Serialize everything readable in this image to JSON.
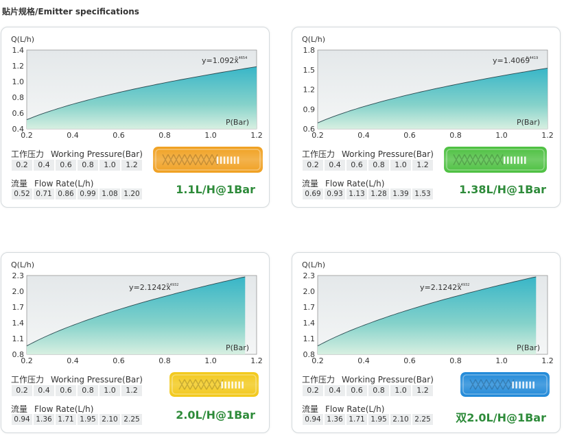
{
  "page_title": "贴片规格/Emitter specifications",
  "cards": [
    {
      "y_label": "Q(L/h)",
      "x_label": "P(Bar)",
      "equation_base": "y=1.092x",
      "equation_exp": "0.4654",
      "pressure_label_cn": "工作压力",
      "pressure_label_en": "Working Pressure(Bar)",
      "pressures": [
        "0.2",
        "0.4",
        "0.6",
        "0.8",
        "1.0",
        "1.2"
      ],
      "flow_label_cn": "流量",
      "flow_label_en": "Flow Rate(L/h)",
      "flows": [
        "0.52",
        "0.71",
        "0.86",
        "0.99",
        "1.08",
        "1.20"
      ],
      "rating": "1.1L/H@1Bar",
      "emitter_color": "#f0a020"
    },
    {
      "y_label": "Q(L/h)",
      "x_label": "P(Bar)",
      "equation_base": "y=1.4069",
      "equation_exp": "0.4419",
      "pressure_label_cn": "工作压力",
      "pressure_label_en": "Working Pressure(Bar)",
      "pressures": [
        "0.2",
        "0.4",
        "0.6",
        "0.8",
        "1.0",
        "1.2"
      ],
      "flow_label_cn": "流量",
      "flow_label_en": "Flow Rate(L/h)",
      "flows": [
        "0.69",
        "0.93",
        "1.13",
        "1.28",
        "1.39",
        "1.53"
      ],
      "rating": "1.38L/H@1Bar",
      "emitter_color": "#4cc040"
    },
    {
      "y_label": "Q(L/h)",
      "x_label": "P(Bar)",
      "equation_base": "y=2.1242x",
      "equation_exp": "0.4932",
      "pressure_label_cn": "工作压力",
      "pressure_label_en": "Working Pressure(Bar)",
      "pressures": [
        "0.2",
        "0.4",
        "0.6",
        "0.8",
        "1.0",
        "1.2"
      ],
      "flow_label_cn": "流量",
      "flow_label_en": "Flow Rate(L/h)",
      "flows": [
        "0.94",
        "1.36",
        "1.71",
        "1.95",
        "2.10",
        "2.25"
      ],
      "rating": "2.0L/H@1Bar",
      "emitter_color": "#f2c818"
    },
    {
      "y_label": "Q(L/h)",
      "x_label": "P(Bar)",
      "equation_base": "y=2.1242x",
      "equation_exp": "0.4932",
      "pressure_label_cn": "工作压力",
      "pressure_label_en": "Working Pressure(Bar)",
      "pressures": [
        "0.2",
        "0.4",
        "0.6",
        "0.8",
        "1.0",
        "1.2"
      ],
      "flow_label_cn": "流量",
      "flow_label_en": "Flow Rate(L/h)",
      "flows": [
        "0.94",
        "1.36",
        "1.71",
        "1.95",
        "2.10",
        "2.25"
      ],
      "rating": "双2.0L/H@1Bar",
      "emitter_color": "#1e88d8"
    }
  ],
  "chart_data": [
    {
      "type": "area",
      "title": "",
      "xlabel": "P(Bar)",
      "ylabel": "Q(L/h)",
      "xlim": [
        0.2,
        1.2
      ],
      "ylim": [
        0.4,
        1.4
      ],
      "x_ticks": [
        "0.2",
        "0.4",
        "0.6",
        "0.8",
        "1.0",
        "1.2"
      ],
      "y_ticks": [
        "0.4",
        "0.6",
        "0.8",
        "1.0",
        "1.2",
        "1.4"
      ],
      "x_end": 1.2,
      "coef": 1.092,
      "exponent": 0.4654
    },
    {
      "type": "area",
      "title": "",
      "xlabel": "P(Bar)",
      "ylabel": "Q(L/h)",
      "xlim": [
        0.2,
        1.2
      ],
      "ylim": [
        0.6,
        1.8
      ],
      "x_ticks": [
        "0.2",
        "0.4",
        "0.6",
        "0.8",
        "1.0",
        "1.2"
      ],
      "y_ticks": [
        "0.6",
        "0.9",
        "1.2",
        "1.5",
        "1.8"
      ],
      "x_end": 1.2,
      "coef": 1.4069,
      "exponent": 0.4419
    },
    {
      "type": "area",
      "title": "",
      "xlabel": "P(Bar)",
      "ylabel": "Q(L/h)",
      "xlim": [
        0.2,
        1.2
      ],
      "ylim": [
        0.8,
        2.3
      ],
      "x_ticks": [
        "0.2",
        "0.4",
        "0.6",
        "0.8",
        "1.0",
        "1.2"
      ],
      "y_ticks": [
        "0.8",
        "1.1",
        "1.4",
        "1.7",
        "2.0",
        "2.3"
      ],
      "x_end": 1.15,
      "coef": 2.1242,
      "exponent": 0.4932
    },
    {
      "type": "area",
      "title": "",
      "xlabel": "P(Bar)",
      "ylabel": "Q(L/h)",
      "xlim": [
        0.2,
        1.2
      ],
      "ylim": [
        0.8,
        2.3
      ],
      "x_ticks": [
        "0.2",
        "0.4",
        "0.6",
        "0.8",
        "1.0",
        "1.2"
      ],
      "y_ticks": [
        "0.8",
        "1.1",
        "1.4",
        "1.7",
        "2.0",
        "2.3"
      ],
      "x_end": 1.15,
      "coef": 2.1242,
      "exponent": 0.4932
    }
  ]
}
